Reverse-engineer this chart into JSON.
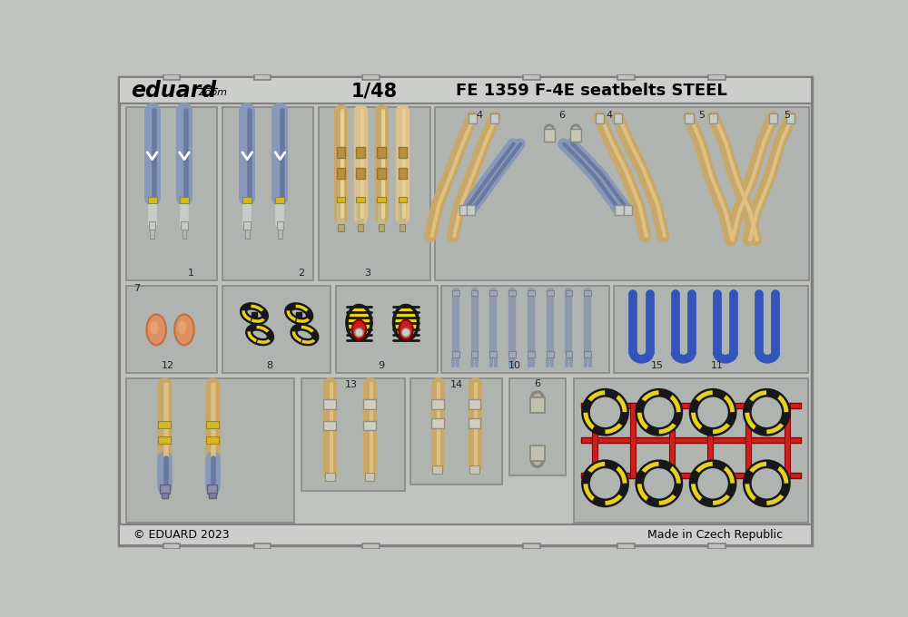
{
  "bg_color": "#c0c2be",
  "panel_color": "#b0b4b0",
  "panel_ec": "#888886",
  "header_color": "#cccecc",
  "belt_blue": "#8898b8",
  "belt_blue_dark": "#6878a0",
  "belt_tan": "#c8a868",
  "belt_tan_light": "#dcc090",
  "belt_gold": "#b89040",
  "yellow_stripe": "#e8d020",
  "red_color": "#cc2020",
  "blue_loop": "#3355bb",
  "orange_pad": "#e09060",
  "connector_yellow": "#d8b820",
  "metal_gray": "#909890",
  "metal_light": "#c8ccc8",
  "black_color": "#181818",
  "copyright_text": "© EDUARD 2023",
  "made_in_text": "Made in Czech Republic"
}
